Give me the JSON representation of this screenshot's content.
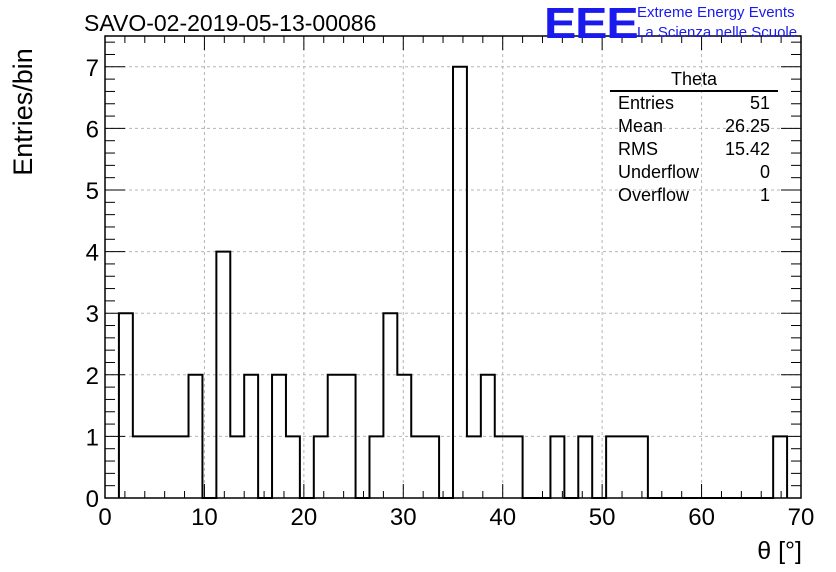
{
  "chart_data": {
    "type": "bar",
    "title": "SAVO-02-2019-05-13-00086",
    "xlabel": "θ [°]",
    "ylabel": "Entries/bin",
    "xlim": [
      0,
      70
    ],
    "ylim": [
      0,
      7.5
    ],
    "grid": true,
    "x_ticks": [
      0,
      10,
      20,
      30,
      40,
      50,
      60,
      70
    ],
    "y_ticks": [
      0,
      1,
      2,
      3,
      4,
      5,
      6,
      7
    ],
    "bin_edges": [
      1.4,
      2.8,
      4.2,
      5.6,
      7.0,
      8.4,
      9.8,
      11.2,
      12.6,
      14.0,
      15.4,
      16.8,
      18.2,
      19.6,
      21.0,
      22.4,
      23.8,
      25.2,
      26.6,
      28.0,
      29.4,
      30.8,
      32.2,
      33.6,
      35.0,
      36.4,
      37.8,
      39.2,
      40.6,
      42.0,
      43.4,
      44.8,
      46.2,
      47.6,
      49.0,
      50.4,
      51.8,
      53.2,
      54.6,
      56.0,
      57.4,
      58.8,
      60.2,
      61.6,
      63.0,
      64.4,
      65.8,
      67.2,
      68.6
    ],
    "values": [
      3,
      1,
      1,
      1,
      1,
      2,
      0,
      4,
      1,
      2,
      0,
      2,
      1,
      0,
      1,
      2,
      2,
      0,
      1,
      3,
      2,
      1,
      1,
      0,
      7,
      1,
      2,
      1,
      1,
      0,
      0,
      1,
      0,
      1,
      0,
      1,
      1,
      1,
      0,
      0,
      0,
      0,
      0,
      0,
      0,
      0,
      0,
      1
    ]
  },
  "stats_box": {
    "name": "Theta",
    "rows": [
      {
        "label": "Entries",
        "value": "51"
      },
      {
        "label": "Mean",
        "value": "26.25"
      },
      {
        "label": "RMS",
        "value": "15.42"
      },
      {
        "label": "Underflow",
        "value": "0"
      },
      {
        "label": "Overflow",
        "value": "1"
      }
    ]
  },
  "logo": {
    "text": "EEE",
    "line1": "Extreme Energy Events",
    "line2": "La Scienza nelle Scuole"
  }
}
